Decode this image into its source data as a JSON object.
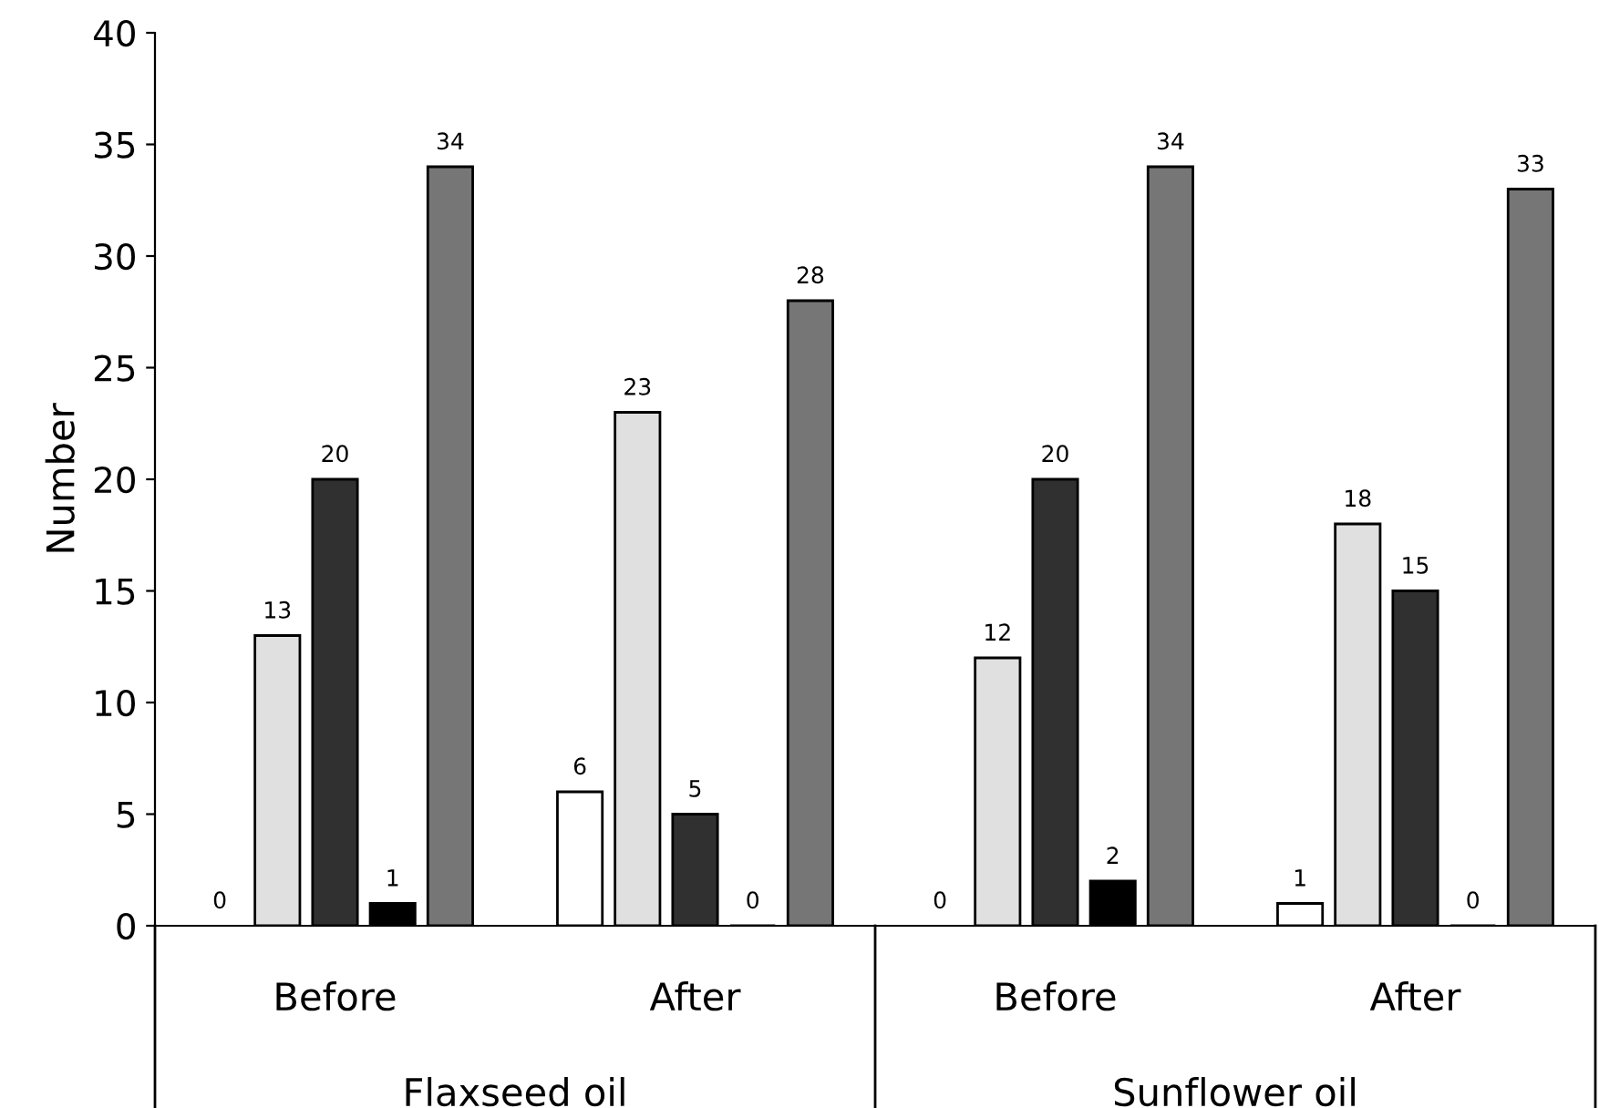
{
  "chart_data": {
    "type": "bar",
    "ylabel": "Number",
    "categories": [
      "Before",
      "After",
      "Before",
      "After"
    ],
    "series": [
      {
        "color": "#ffffff",
        "values": [
          0,
          6,
          0,
          1
        ]
      },
      {
        "color": "#e0e0e0",
        "values": [
          13,
          23,
          12,
          18
        ]
      },
      {
        "color": "#303030",
        "values": [
          20,
          5,
          20,
          15
        ]
      },
      {
        "color": "#000000",
        "values": [
          1,
          0,
          2,
          0
        ]
      },
      {
        "color": "#767676",
        "values": [
          34,
          28,
          34,
          33
        ]
      }
    ],
    "annotations": [
      "Flaxseed oil",
      "Sunflower oil"
    ],
    "ylim": [
      0,
      40
    ],
    "yticks": [
      0,
      5,
      10,
      15,
      20,
      25,
      30,
      35,
      40
    ],
    "data_labels": true,
    "grid": false,
    "legend": false
  }
}
